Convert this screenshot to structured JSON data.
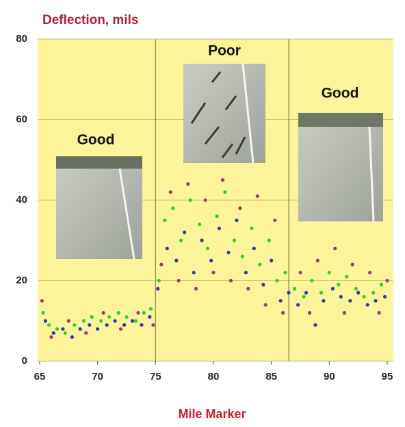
{
  "chart_data": {
    "type": "scatter",
    "title": "Deflection, mils",
    "x_label": "Mile Marker",
    "xlim": [
      65,
      95
    ],
    "xticks": [
      65,
      70,
      75,
      80,
      85,
      90,
      95
    ],
    "ylim": [
      0,
      80
    ],
    "yticks": [
      0,
      20,
      40,
      60,
      80
    ],
    "grid": true,
    "section_lines": [
      75,
      86.5
    ],
    "annotations": [
      "Good",
      "Poor",
      "Good"
    ],
    "series": [
      {
        "color": "#33cc33",
        "x": [
          65.3,
          65.8,
          66.5,
          67.2,
          68,
          68.8,
          69.5,
          70.3,
          71,
          71.8,
          72.5,
          73.3,
          74,
          74.6,
          75.3,
          75.8,
          76.5,
          77.2,
          78,
          78.8,
          79.5,
          80.3,
          81,
          81.8,
          82.5,
          83.3,
          84,
          84.8,
          85.5,
          86.2,
          87,
          87.8,
          88.5,
          89.3,
          90,
          90.8,
          91.5,
          92.3,
          93,
          93.8,
          94.5
        ],
        "y": [
          12,
          9,
          8,
          7,
          9,
          10,
          11,
          10,
          11,
          12,
          11,
          10,
          12,
          13,
          20,
          35,
          38,
          30,
          40,
          34,
          28,
          36,
          42,
          30,
          26,
          33,
          24,
          30,
          20,
          22,
          18,
          16,
          20,
          17,
          22,
          19,
          21,
          18,
          16,
          17,
          19
        ]
      },
      {
        "color": "#2b3ba8",
        "x": [
          65.5,
          66.2,
          67,
          67.8,
          68.5,
          69.3,
          70,
          70.8,
          71.5,
          72.3,
          73,
          73.8,
          74.5,
          75.2,
          76,
          76.8,
          77.5,
          78.3,
          79,
          79.8,
          80.5,
          81.3,
          82,
          82.8,
          83.5,
          84.3,
          85,
          85.8,
          86.5,
          87.3,
          88,
          88.8,
          89.5,
          90.3,
          91,
          91.8,
          92.5,
          93.3,
          94,
          94.8
        ],
        "y": [
          10,
          7,
          8,
          6,
          8,
          9,
          8,
          9,
          10,
          9,
          10,
          9,
          11,
          18,
          28,
          25,
          32,
          22,
          30,
          25,
          33,
          27,
          35,
          22,
          28,
          19,
          25,
          15,
          17,
          14,
          17,
          9,
          15,
          18,
          16,
          15,
          17,
          14,
          15,
          16
        ]
      },
      {
        "color": "#9b3a7a",
        "x": [
          65.2,
          66,
          67.5,
          69,
          70.5,
          72,
          73.5,
          74.8,
          75.5,
          76.3,
          77,
          77.8,
          78.5,
          79.3,
          80,
          80.8,
          81.5,
          82.3,
          83,
          83.8,
          84.5,
          85.3,
          86,
          87.5,
          88.3,
          89,
          90.5,
          91.3,
          92,
          93.5,
          94.3,
          95
        ],
        "y": [
          15,
          6,
          10,
          7,
          12,
          8,
          12,
          9,
          24,
          42,
          20,
          44,
          18,
          40,
          22,
          45,
          20,
          38,
          18,
          41,
          14,
          35,
          12,
          22,
          12,
          25,
          28,
          12,
          24,
          22,
          12,
          20
        ]
      }
    ]
  }
}
